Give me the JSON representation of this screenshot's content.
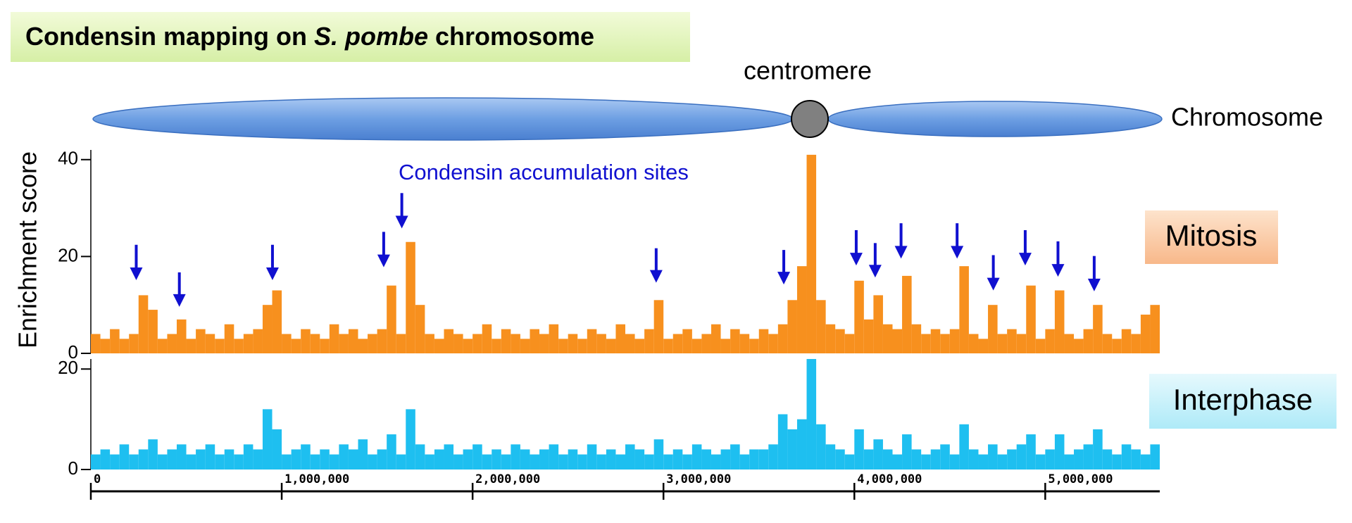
{
  "title_box": {
    "title_before": "Condensin mapping on ",
    "title_italic": "S. pombe",
    "title_after": " chromosome"
  },
  "schematic": {
    "centromere_label": "centromere",
    "chromosome_label": "Chromosome"
  },
  "annotation": "Condensin accumulation sites",
  "ylabel": "Enrichment score",
  "chart_data": [
    {
      "type": "bar",
      "name": "Mitosis",
      "color": "#f7901e",
      "x": [
        0,
        50000,
        100000,
        150000,
        200000,
        250000,
        300000,
        350000,
        400000,
        450000,
        500000,
        550000,
        600000,
        650000,
        700000,
        750000,
        800000,
        850000,
        900000,
        950000,
        1000000,
        1050000,
        1100000,
        1150000,
        1200000,
        1250000,
        1300000,
        1350000,
        1400000,
        1450000,
        1500000,
        1550000,
        1600000,
        1650000,
        1700000,
        1750000,
        1800000,
        1850000,
        1900000,
        1950000,
        2000000,
        2050000,
        2100000,
        2150000,
        2200000,
        2250000,
        2300000,
        2350000,
        2400000,
        2450000,
        2500000,
        2550000,
        2600000,
        2650000,
        2700000,
        2750000,
        2800000,
        2850000,
        2900000,
        2950000,
        3000000,
        3050000,
        3100000,
        3150000,
        3200000,
        3250000,
        3300000,
        3350000,
        3400000,
        3450000,
        3500000,
        3550000,
        3600000,
        3650000,
        3700000,
        3750000,
        3800000,
        3850000,
        3900000,
        3950000,
        4000000,
        4050000,
        4100000,
        4150000,
        4200000,
        4250000,
        4300000,
        4350000,
        4400000,
        4450000,
        4500000,
        4550000,
        4600000,
        4650000,
        4700000,
        4750000,
        4800000,
        4850000,
        4900000,
        4950000,
        5000000,
        5050000,
        5100000,
        5150000,
        5200000,
        5250000,
        5300000,
        5350000,
        5400000,
        5450000,
        5500000,
        5550000
      ],
      "values": [
        4,
        3,
        5,
        3,
        4,
        12,
        9,
        3,
        4,
        7,
        3,
        5,
        4,
        3,
        6,
        3,
        4,
        5,
        10,
        13,
        4,
        3,
        5,
        4,
        3,
        6,
        4,
        5,
        3,
        4,
        5,
        14,
        4,
        23,
        10,
        4,
        3,
        5,
        4,
        3,
        4,
        6,
        3,
        5,
        4,
        3,
        5,
        4,
        6,
        3,
        4,
        3,
        5,
        4,
        3,
        6,
        4,
        3,
        5,
        11,
        3,
        4,
        5,
        3,
        4,
        6,
        3,
        5,
        4,
        3,
        5,
        4,
        6,
        11,
        18,
        41,
        11,
        6,
        5,
        4,
        15,
        7,
        12,
        6,
        5,
        16,
        6,
        4,
        5,
        4,
        5,
        18,
        4,
        3,
        10,
        4,
        5,
        4,
        14,
        3,
        5,
        13,
        4,
        3,
        5,
        10,
        4,
        3,
        5,
        4,
        8,
        10
      ],
      "xlim": [
        0,
        5600000
      ],
      "ylim": [
        0,
        42
      ],
      "yticks": [
        0,
        20,
        40
      ]
    },
    {
      "type": "bar",
      "name": "Interphase",
      "color": "#1ebff0",
      "x": [
        0,
        50000,
        100000,
        150000,
        200000,
        250000,
        300000,
        350000,
        400000,
        450000,
        500000,
        550000,
        600000,
        650000,
        700000,
        750000,
        800000,
        850000,
        900000,
        950000,
        1000000,
        1050000,
        1100000,
        1150000,
        1200000,
        1250000,
        1300000,
        1350000,
        1400000,
        1450000,
        1500000,
        1550000,
        1600000,
        1650000,
        1700000,
        1750000,
        1800000,
        1850000,
        1900000,
        1950000,
        2000000,
        2050000,
        2100000,
        2150000,
        2200000,
        2250000,
        2300000,
        2350000,
        2400000,
        2450000,
        2500000,
        2550000,
        2600000,
        2650000,
        2700000,
        2750000,
        2800000,
        2850000,
        2900000,
        2950000,
        3000000,
        3050000,
        3100000,
        3150000,
        3200000,
        3250000,
        3300000,
        3350000,
        3400000,
        3450000,
        3500000,
        3550000,
        3600000,
        3650000,
        3700000,
        3750000,
        3800000,
        3850000,
        3900000,
        3950000,
        4000000,
        4050000,
        4100000,
        4150000,
        4200000,
        4250000,
        4300000,
        4350000,
        4400000,
        4450000,
        4500000,
        4550000,
        4600000,
        4650000,
        4700000,
        4750000,
        4800000,
        4850000,
        4900000,
        4950000,
        5000000,
        5050000,
        5100000,
        5150000,
        5200000,
        5250000,
        5300000,
        5350000,
        5400000,
        5450000,
        5500000,
        5550000
      ],
      "values": [
        3,
        4,
        3,
        5,
        3,
        4,
        6,
        3,
        4,
        5,
        3,
        4,
        5,
        3,
        4,
        3,
        5,
        4,
        12,
        8,
        3,
        4,
        5,
        3,
        4,
        3,
        5,
        4,
        6,
        3,
        4,
        7,
        3,
        12,
        5,
        3,
        4,
        5,
        3,
        4,
        5,
        3,
        4,
        3,
        5,
        4,
        3,
        4,
        5,
        3,
        4,
        3,
        5,
        3,
        4,
        3,
        5,
        4,
        3,
        6,
        3,
        4,
        3,
        5,
        4,
        3,
        4,
        5,
        3,
        4,
        4,
        5,
        11,
        8,
        10,
        22,
        9,
        5,
        4,
        3,
        8,
        4,
        6,
        4,
        3,
        7,
        4,
        3,
        4,
        5,
        3,
        9,
        4,
        3,
        5,
        3,
        4,
        5,
        7,
        3,
        4,
        7,
        3,
        4,
        5,
        8,
        4,
        3,
        5,
        4,
        3,
        5
      ],
      "xlim": [
        0,
        5600000
      ],
      "ylim": [
        0,
        22
      ],
      "yticks": [
        0,
        20
      ],
      "xticks": [
        0,
        {
          "value": 1000000,
          "label": "1,000,000"
        },
        {
          "value": 2000000,
          "label": "2,000,000"
        },
        {
          "value": 3000000,
          "label": "3,000,000"
        },
        {
          "value": 4000000,
          "label": "4,000,000"
        },
        {
          "value": 5000000,
          "label": "5,000,000"
        }
      ]
    }
  ]
}
